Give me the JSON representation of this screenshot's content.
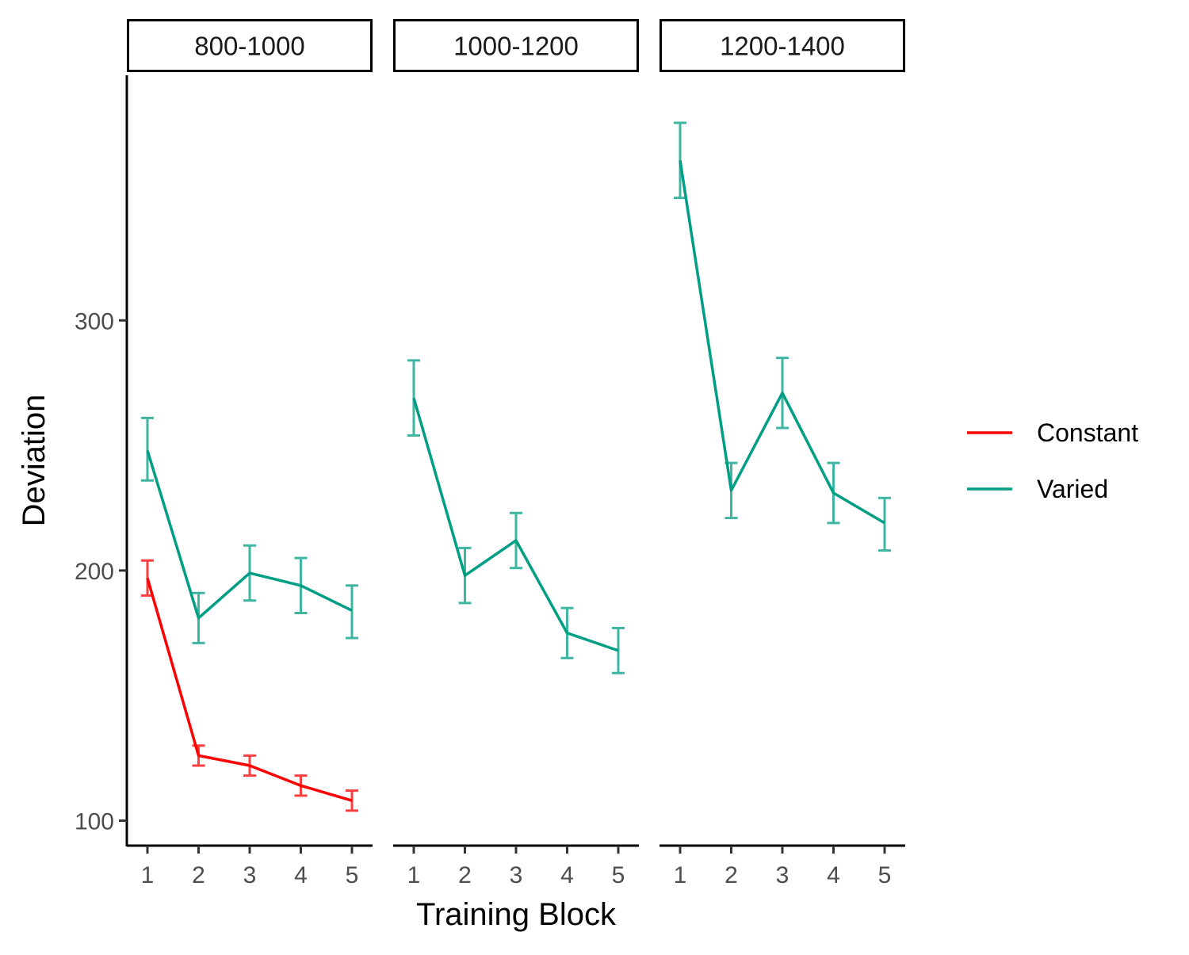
{
  "chart_data": {
    "type": "line",
    "xlabel": "Training Block",
    "ylabel": "Deviation",
    "x": [
      1,
      2,
      3,
      4,
      5
    ],
    "x_tick_labels": [
      "1",
      "2",
      "3",
      "4",
      "5"
    ],
    "ylim": [
      90,
      398
    ],
    "y_ticks": [
      100,
      200,
      300
    ],
    "y_tick_labels": [
      "100",
      "200",
      "300"
    ],
    "grid": false,
    "legend": {
      "position": "right",
      "entries": [
        {
          "label": "Constant",
          "color": "#ff0000"
        },
        {
          "label": "Varied",
          "color": "#009e84"
        }
      ]
    },
    "panels": [
      {
        "label": "800-1000",
        "series": [
          {
            "name": "Constant",
            "color": "#ff0000",
            "values": [
              197,
              126,
              122,
              114,
              108
            ],
            "error_low": [
              190,
              122,
              118,
              110,
              104
            ],
            "error_high": [
              204,
              130,
              126,
              118,
              112
            ]
          },
          {
            "name": "Varied",
            "color": "#009e84",
            "values": [
              248,
              181,
              199,
              194,
              184
            ],
            "error_low": [
              236,
              171,
              188,
              183,
              173
            ],
            "error_high": [
              261,
              191,
              210,
              205,
              194
            ]
          }
        ]
      },
      {
        "label": "1000-1200",
        "series": [
          {
            "name": "Varied",
            "color": "#009e84",
            "values": [
              269,
              198,
              212,
              175,
              168
            ],
            "error_low": [
              254,
              187,
              201,
              165,
              159
            ],
            "error_high": [
              284,
              209,
              223,
              185,
              177
            ]
          }
        ]
      },
      {
        "label": "1200-1400",
        "series": [
          {
            "name": "Varied",
            "color": "#009e84",
            "values": [
              364,
              232,
              271,
              231,
              219
            ],
            "error_low": [
              349,
              221,
              257,
              219,
              208
            ],
            "error_high": [
              379,
              243,
              285,
              243,
              229
            ]
          }
        ]
      }
    ]
  }
}
